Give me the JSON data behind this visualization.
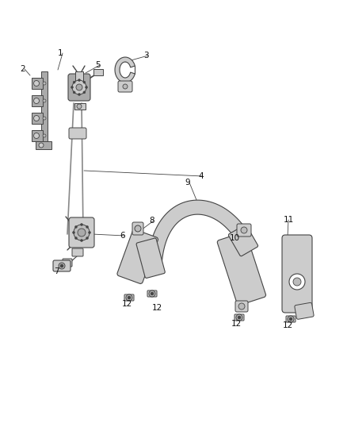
{
  "bg_color": "#ffffff",
  "line_color": "#444444",
  "label_color": "#111111",
  "label_fontsize": 7.5,
  "fig_w": 4.38,
  "fig_h": 5.33,
  "dpi": 100
}
